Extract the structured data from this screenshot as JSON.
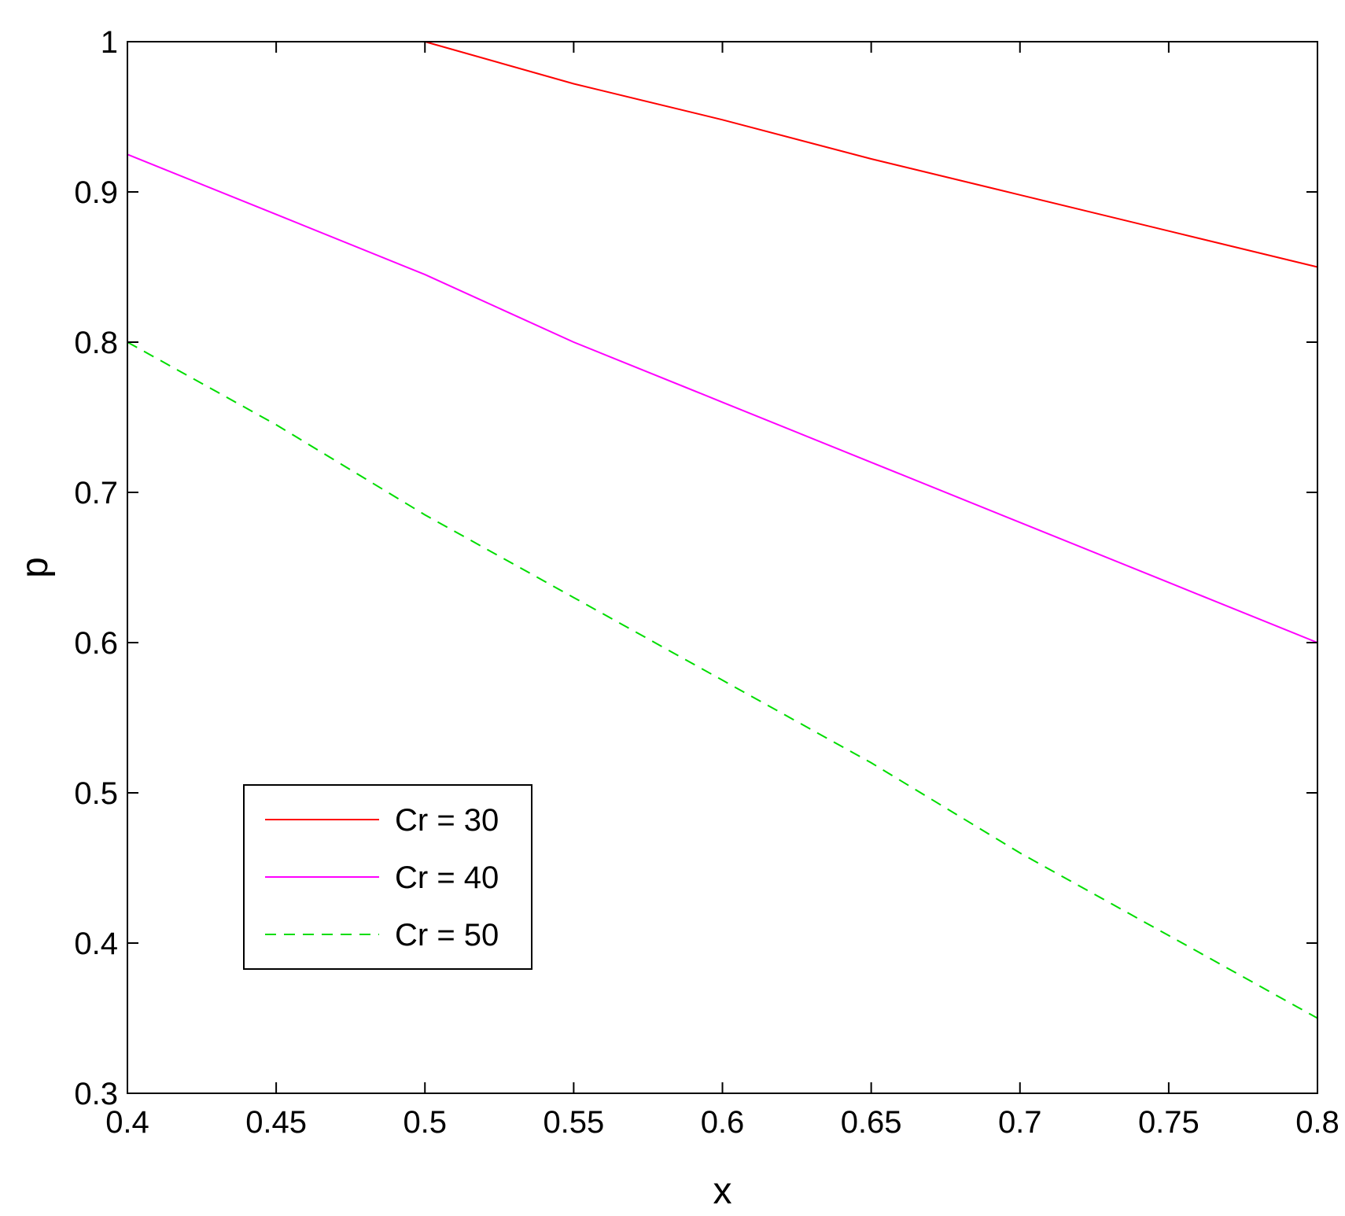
{
  "chart_data": {
    "type": "line",
    "title": "",
    "xlabel": "x",
    "ylabel": "p",
    "xlim": [
      0.4,
      0.8
    ],
    "ylim": [
      0.3,
      1.0
    ],
    "xticks": [
      0.4,
      0.45,
      0.5,
      0.55,
      0.6,
      0.65,
      0.7,
      0.75,
      0.8
    ],
    "xtick_labels": [
      "0.4",
      "0.45",
      "0.5",
      "0.55",
      "0.6",
      "0.65",
      "0.7",
      "0.75",
      "0.8"
    ],
    "yticks": [
      0.3,
      0.4,
      0.5,
      0.6,
      0.7,
      0.8,
      0.9,
      1.0
    ],
    "ytick_labels": [
      "0.3",
      "0.4",
      "0.5",
      "0.6",
      "0.7",
      "0.8",
      "0.9",
      "1"
    ],
    "grid": false,
    "legend_position": "lower-left",
    "series": [
      {
        "name": "Cr = 30",
        "color": "#ff0000",
        "style": "solid",
        "x": [
          0.5,
          0.55,
          0.6,
          0.65,
          0.7,
          0.75,
          0.8
        ],
        "y": [
          1.0,
          0.972,
          0.948,
          0.922,
          0.898,
          0.874,
          0.85
        ]
      },
      {
        "name": "Cr = 40",
        "color": "#ff00ff",
        "style": "solid",
        "x": [
          0.4,
          0.45,
          0.5,
          0.55,
          0.6,
          0.65,
          0.7,
          0.75,
          0.8
        ],
        "y": [
          0.925,
          0.885,
          0.845,
          0.8,
          0.76,
          0.72,
          0.68,
          0.64,
          0.6
        ]
      },
      {
        "name": "Cr = 50",
        "color": "#00dd00",
        "style": "dashed",
        "x": [
          0.4,
          0.45,
          0.5,
          0.55,
          0.6,
          0.65,
          0.7,
          0.75,
          0.8
        ],
        "y": [
          0.8,
          0.745,
          0.685,
          0.63,
          0.575,
          0.52,
          0.46,
          0.405,
          0.35
        ]
      }
    ]
  }
}
